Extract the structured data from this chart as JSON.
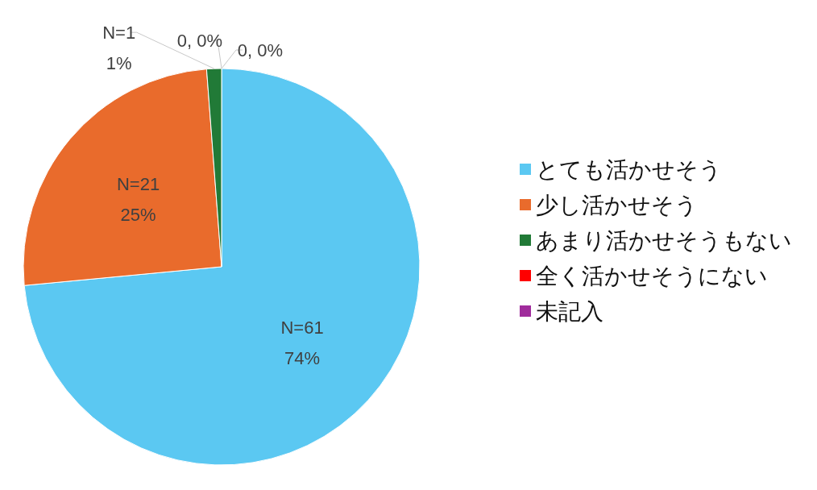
{
  "chart_data": {
    "type": "pie",
    "categories": [
      "とても活かせそう",
      "少し活かせそう",
      "あまり活かせそうもない",
      "全く活かせそうにない",
      "未記入"
    ],
    "values": [
      61,
      21,
      1,
      0,
      0
    ],
    "colors": [
      "#5bc8f2",
      "#e96b2c",
      "#217a37",
      "#ff0000",
      "#a02c9c"
    ],
    "value_labels": [
      "N=61\n74%",
      "N=21\n25%",
      "N=1\n1%",
      "0, 0%",
      "0, 0%"
    ],
    "legend": "right"
  }
}
